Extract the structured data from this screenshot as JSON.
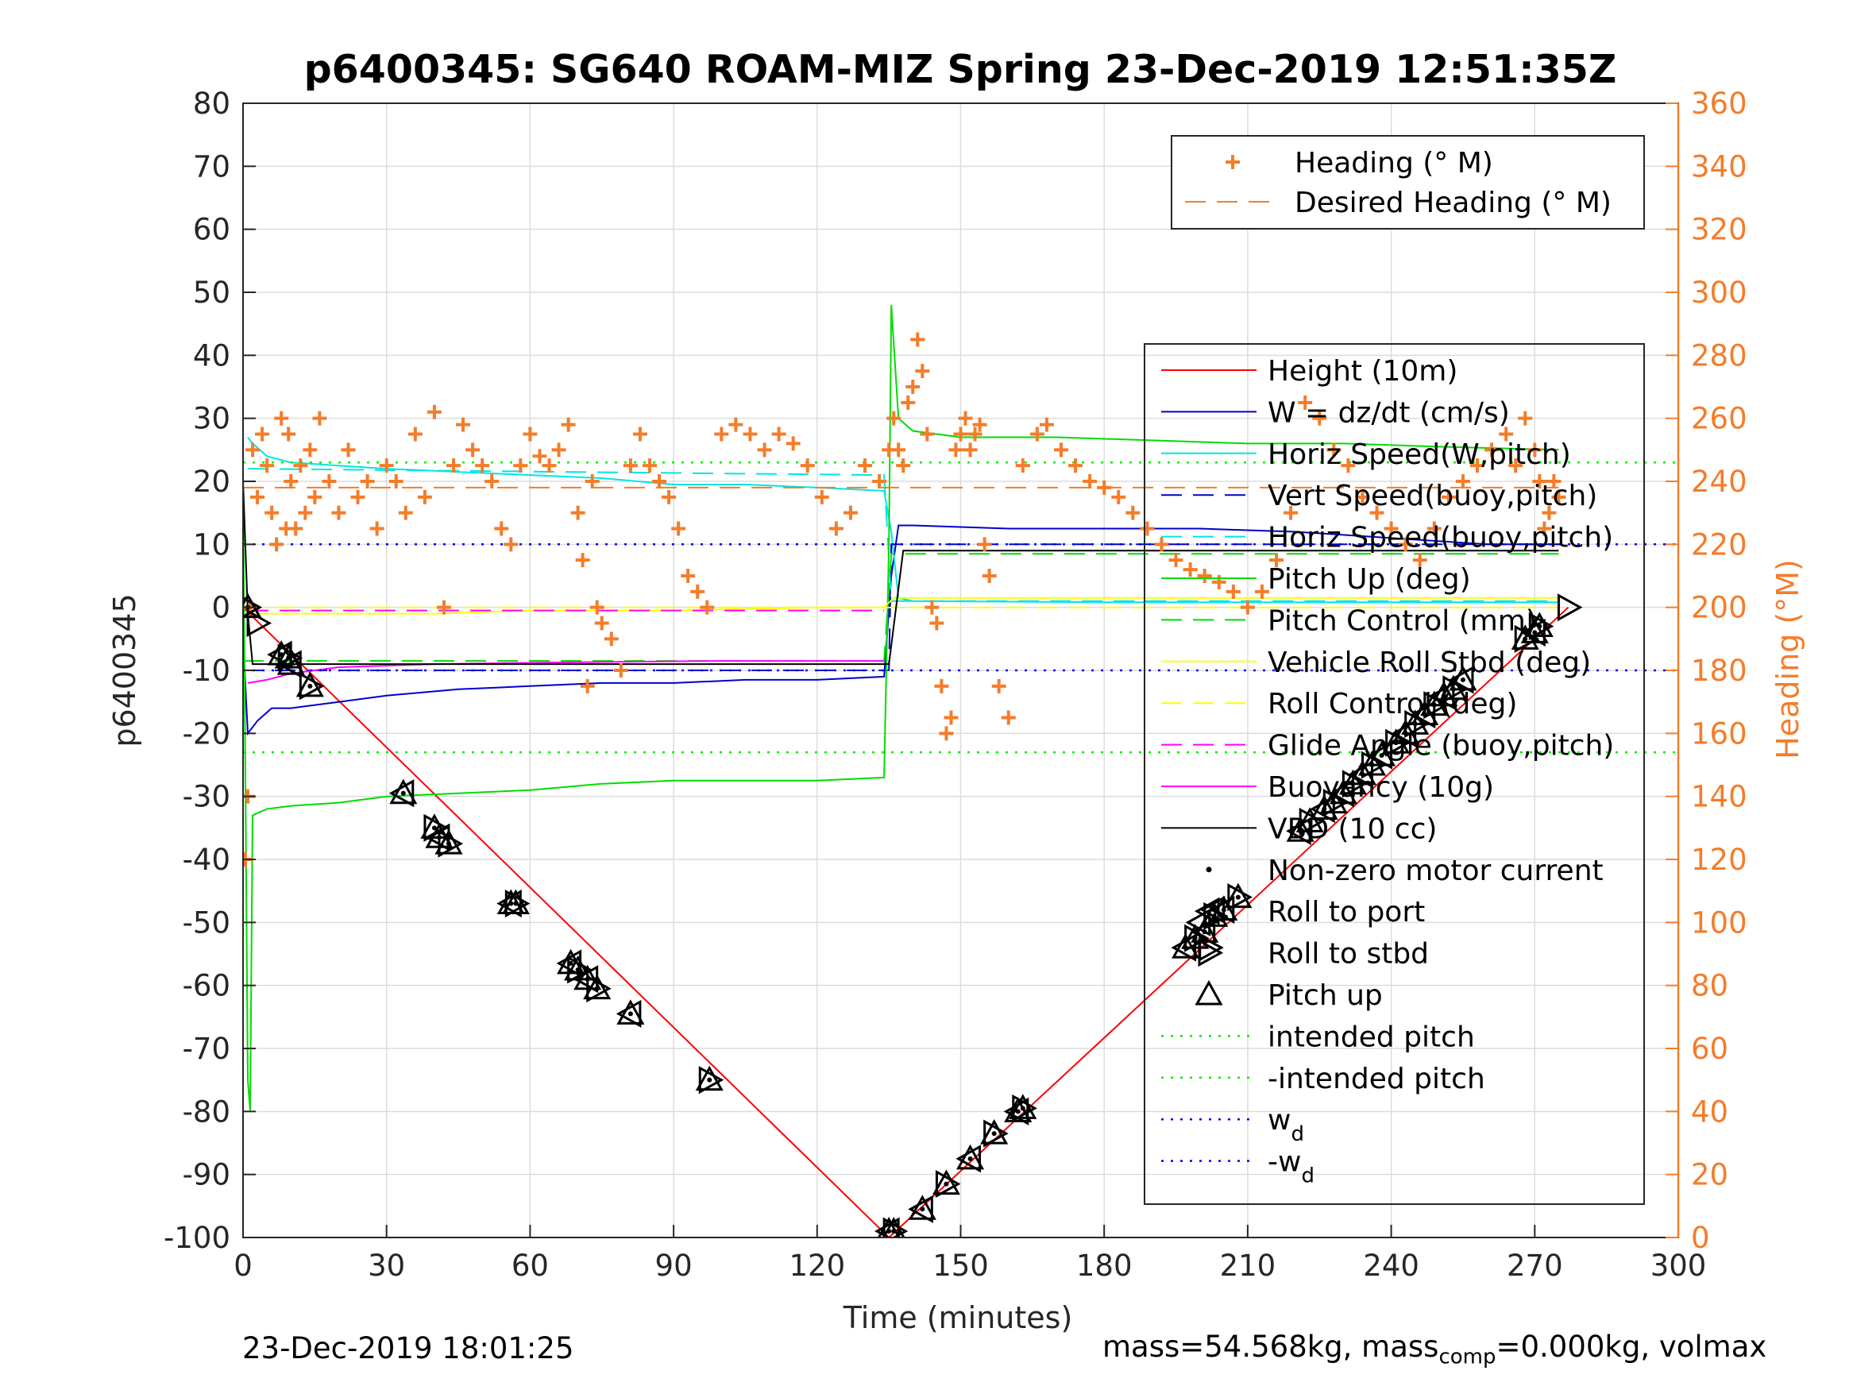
{
  "chart_data": {
    "type": "line",
    "title": "p6400345: SG640 ROAM-MIZ Spring 23-Dec-2019 12:51:35Z",
    "xlabel": "Time (minutes)",
    "ylabel_left": "p6400345",
    "ylabel_right": "Heading (°M)",
    "xlim": [
      0,
      300
    ],
    "ylim_left": [
      -100,
      80
    ],
    "ylim_right": [
      0,
      360
    ],
    "xticks": [
      "0",
      "30",
      "60",
      "90",
      "120",
      "150",
      "180",
      "210",
      "240",
      "270",
      "300"
    ],
    "yticks_left": [
      "80",
      "70",
      "60",
      "50",
      "40",
      "30",
      "20",
      "10",
      "0",
      "-10",
      "-20",
      "-30",
      "-40",
      "-50",
      "-60",
      "-70",
      "-80",
      "-90",
      "-100"
    ],
    "yticks_right": [
      "360",
      "340",
      "320",
      "300",
      "280",
      "260",
      "240",
      "220",
      "200",
      "180",
      "160",
      "140",
      "120",
      "100",
      "80",
      "60",
      "40",
      "20",
      "0"
    ],
    "grid": true,
    "legend_top": {
      "placement": "top-right",
      "entries": [
        {
          "name": "Heading (° M)",
          "color": "#f47c2a",
          "style": "plus"
        },
        {
          "name": "Desired Heading (° M)",
          "color": "#f47c2a",
          "style": "dashed"
        }
      ]
    },
    "legend_main": {
      "placement": "right",
      "entries": [
        {
          "name": "Height (10m)",
          "color": "#ff0000",
          "style": "solid"
        },
        {
          "name": "W = dz/dt (cm/s)",
          "color": "#0000cc",
          "style": "solid"
        },
        {
          "name": "Horiz Speed(W,pitch)",
          "color": "#00e5e5",
          "style": "solid"
        },
        {
          "name": "Vert Speed(buoy,pitch)",
          "color": "#0000cc",
          "style": "dashed"
        },
        {
          "name": "Horiz Speed(buoy,pitch)",
          "color": "#00e5e5",
          "style": "dashed"
        },
        {
          "name": "Pitch Up (deg)",
          "color": "#00dd00",
          "style": "solid"
        },
        {
          "name": "Pitch Control (mm)",
          "color": "#00dd00",
          "style": "dashed"
        },
        {
          "name": "Vehicle Roll Stbd (deg)",
          "color": "#ffff00",
          "style": "solid"
        },
        {
          "name": "Roll Control (deg)",
          "color": "#ffff00",
          "style": "dashed"
        },
        {
          "name": "Glide Angle (buoy,pitch)",
          "color": "#ff00ff",
          "style": "dashed"
        },
        {
          "name": "Buoyancy (10g)",
          "color": "#ff00ff",
          "style": "solid"
        },
        {
          "name": "VBD (10 cc)",
          "color": "#000000",
          "style": "solid"
        },
        {
          "name": "Non-zero motor current",
          "color": "#000000",
          "style": "dot"
        },
        {
          "name": "Roll to port",
          "color": "#000000",
          "style": "tri-left"
        },
        {
          "name": "Roll to stbd",
          "color": "#000000",
          "style": "tri-right"
        },
        {
          "name": "Pitch up",
          "color": "#000000",
          "style": "tri-up"
        },
        {
          "name": "intended pitch",
          "color": "#00ee00",
          "style": "dotted"
        },
        {
          "name": "-intended pitch",
          "color": "#00ee00",
          "style": "dotted"
        },
        {
          "name": "w",
          "sub": "d",
          "color": "#0000ff",
          "style": "dotted"
        },
        {
          "name": "-w",
          "sub": "d",
          "color": "#0000ff",
          "style": "dotted"
        }
      ]
    },
    "series": [
      {
        "name": "Height (10m)",
        "axis": "left",
        "color": "#ff0000",
        "x": [
          0,
          135,
          277
        ],
        "y": [
          0,
          -100,
          0
        ]
      },
      {
        "name": "W = dz/dt (cm/s)",
        "axis": "left",
        "color": "#0000cc",
        "x": [
          0,
          1,
          3,
          6,
          10,
          20,
          30,
          45,
          60,
          75,
          90,
          105,
          120,
          134,
          135.5,
          137,
          140,
          160,
          180,
          200,
          220,
          240,
          260,
          275
        ],
        "y": [
          -5,
          -20,
          -18,
          -16,
          -16,
          -15,
          -14,
          -13,
          -12.5,
          -12,
          -12,
          -11.5,
          -11.5,
          -11,
          5,
          13,
          13,
          12.5,
          12.5,
          12.5,
          12,
          11,
          10,
          10
        ]
      },
      {
        "name": "Horiz Speed(W,pitch)",
        "axis": "left",
        "color": "#00e5e5",
        "x": [
          1,
          2,
          5,
          10,
          20,
          30,
          45,
          60,
          75,
          90,
          105,
          120,
          134,
          135.5,
          137,
          140,
          180,
          220,
          275
        ],
        "y": [
          27,
          26,
          24,
          23,
          22.5,
          22,
          21.5,
          21,
          20.5,
          19.5,
          19.5,
          19,
          18.5,
          12,
          1.5,
          1,
          0.8,
          0.8,
          0.8
        ]
      },
      {
        "name": "Vert Speed(buoy,pitch)",
        "axis": "left",
        "color": "#0000cc",
        "x": [
          0,
          135,
          135.5,
          275
        ],
        "y": [
          -10,
          -10,
          10,
          10
        ]
      },
      {
        "name": "Horiz Speed(buoy,pitch)",
        "axis": "left",
        "color": "#00e5e5",
        "x": [
          1,
          134,
          135.5,
          275
        ],
        "y": [
          22,
          21,
          1,
          1
        ]
      },
      {
        "name": "Pitch Up (deg)",
        "axis": "left",
        "color": "#00dd00",
        "x": [
          0,
          1,
          1.5,
          2,
          5,
          10,
          20,
          30,
          45,
          60,
          75,
          90,
          105,
          120,
          134,
          135,
          135.5,
          137,
          140,
          150,
          170,
          190,
          210,
          230,
          250,
          275
        ],
        "y": [
          20,
          -75,
          -80,
          -33,
          -32,
          -31.5,
          -31,
          -30,
          -29.5,
          -29,
          -28,
          -27.5,
          -27.5,
          -27.5,
          -27,
          10,
          48,
          30,
          28,
          27,
          27,
          26.5,
          26,
          26,
          25.5,
          25
        ]
      },
      {
        "name": "Pitch Control (mm)",
        "axis": "left",
        "color": "#00dd00",
        "x": [
          0,
          134,
          135.5,
          275
        ],
        "y": [
          -8.5,
          -8.5,
          8.5,
          8.5
        ]
      },
      {
        "name": "Vehicle Roll Stbd (deg)",
        "axis": "left",
        "color": "#ffff00",
        "x": [
          1,
          20,
          40,
          60,
          90,
          120,
          134,
          136,
          160,
          200,
          240,
          275
        ],
        "y": [
          -1,
          -1,
          -1,
          -0.5,
          -0.5,
          0,
          0,
          1.5,
          1.5,
          1.5,
          1.5,
          1.5
        ]
      },
      {
        "name": "Roll Control (deg)",
        "axis": "left",
        "color": "#ffff00",
        "x": [
          0,
          275
        ],
        "y": [
          0,
          0
        ]
      },
      {
        "name": "Glide Angle (buoy,pitch)",
        "axis": "left",
        "color": "#ff00ff",
        "x": [
          1,
          134
        ],
        "y": [
          -0.5,
          -0.5
        ]
      },
      {
        "name": "Buoyancy (10g)",
        "axis": "left",
        "color": "#ff00ff",
        "x": [
          1,
          5,
          10,
          20,
          40,
          70,
          100,
          134
        ],
        "y": [
          -12,
          -11.5,
          -10.5,
          -9.5,
          -9,
          -8.7,
          -8.5,
          -8.5
        ]
      },
      {
        "name": "VBD (10 cc)",
        "axis": "left",
        "color": "#000000",
        "x": [
          0,
          1,
          2,
          134,
          135,
          138,
          275
        ],
        "y": [
          20,
          -1,
          -9,
          -9,
          -9,
          9,
          9
        ]
      },
      {
        "name": "intended pitch",
        "axis": "left",
        "color": "#00ee00",
        "x": [
          0,
          300
        ],
        "y": [
          23,
          23
        ]
      },
      {
        "name": "-intended pitch",
        "axis": "left",
        "color": "#00ee00",
        "x": [
          0,
          300
        ],
        "y": [
          -23,
          -23
        ]
      },
      {
        "name": "w_d",
        "axis": "left",
        "color": "#0000ff",
        "x": [
          0,
          300
        ],
        "y": [
          10,
          10
        ]
      },
      {
        "name": "-w_d",
        "axis": "left",
        "color": "#0000ff",
        "x": [
          0,
          300
        ],
        "y": [
          -10,
          -10
        ]
      },
      {
        "name": "Desired Heading (° M)",
        "axis": "right",
        "color": "#f47c2a",
        "x": [
          0,
          275
        ],
        "y": [
          238,
          238
        ]
      }
    ],
    "heading_points": {
      "name": "Heading (° M)",
      "axis": "right",
      "color": "#f47c2a",
      "x": [
        0.5,
        1,
        1.5,
        2,
        3,
        4,
        5,
        6,
        7,
        8,
        9,
        9.5,
        10,
        11,
        12,
        13,
        14,
        15,
        16,
        18,
        20,
        22,
        24,
        26,
        28,
        30,
        32,
        34,
        36,
        38,
        40,
        42,
        44,
        46,
        48,
        50,
        52,
        54,
        56,
        58,
        60,
        62,
        64,
        66,
        68,
        70,
        71,
        72,
        73,
        74,
        75,
        77,
        79,
        81,
        83,
        85,
        87,
        89,
        91,
        93,
        95,
        97,
        100,
        103,
        106,
        109,
        112,
        115,
        118,
        121,
        124,
        127,
        130,
        133,
        135,
        136,
        137,
        138,
        139,
        140,
        141,
        142,
        143,
        144,
        145,
        146,
        147,
        148,
        149,
        150,
        151,
        152,
        153,
        154,
        155,
        156,
        158,
        160,
        163,
        166,
        168,
        171,
        174,
        177,
        180,
        183,
        186,
        189,
        192,
        195,
        198,
        201,
        204,
        207,
        210,
        213,
        216,
        219,
        222,
        225,
        228,
        231,
        234,
        237,
        240,
        243,
        246,
        249,
        252,
        255,
        258,
        261,
        264,
        266,
        268,
        270,
        271,
        272,
        273,
        274,
        275
      ],
      "y": [
        120,
        140,
        200,
        250,
        235,
        255,
        245,
        230,
        220,
        260,
        225,
        255,
        240,
        225,
        245,
        230,
        250,
        235,
        260,
        240,
        230,
        250,
        235,
        240,
        225,
        245,
        240,
        230,
        255,
        235,
        262,
        200,
        245,
        258,
        250,
        245,
        240,
        225,
        220,
        245,
        255,
        248,
        245,
        250,
        258,
        230,
        215,
        175,
        240,
        200,
        195,
        190,
        180,
        245,
        255,
        245,
        240,
        235,
        225,
        210,
        205,
        200,
        255,
        258,
        255,
        250,
        255,
        252,
        245,
        235,
        225,
        230,
        245,
        240,
        250,
        260,
        250,
        245,
        265,
        270,
        285,
        275,
        255,
        200,
        195,
        175,
        160,
        165,
        250,
        255,
        260,
        250,
        255,
        258,
        220,
        210,
        175,
        165,
        245,
        255,
        258,
        250,
        245,
        240,
        238,
        235,
        230,
        225,
        220,
        215,
        212,
        210,
        208,
        205,
        200,
        205,
        215,
        230,
        265,
        260,
        250,
        245,
        235,
        230,
        225,
        220,
        215,
        225,
        235,
        240,
        245,
        250,
        255,
        245,
        260,
        250,
        240,
        225,
        230,
        240,
        235
      ]
    },
    "motor_markers": {
      "pitch_up": {
        "x": [
          1,
          8,
          9.5,
          10,
          14,
          33.5,
          40,
          41,
          43,
          56,
          57,
          68.5,
          70,
          72,
          74,
          81,
          97.5,
          135,
          136,
          142,
          147,
          152,
          157,
          162,
          163,
          197,
          199,
          201,
          203,
          205,
          208,
          221,
          223,
          226,
          228,
          230,
          232,
          234,
          236,
          238,
          241,
          243,
          245,
          247,
          249,
          251,
          253,
          255,
          268,
          270,
          271
        ],
        "y": [
          0,
          -7.5,
          -8,
          -9,
          -12.5,
          -29.5,
          -35,
          -36.5,
          -37.5,
          -47,
          -47,
          -56.5,
          -57.5,
          -59,
          -60.5,
          -64.5,
          -75,
          -99,
          -99,
          -95.5,
          -91.5,
          -87.5,
          -83.5,
          -80,
          -79.5,
          -54,
          -52.5,
          -51.5,
          -49,
          -48,
          -46,
          -35.5,
          -34,
          -32,
          -31,
          -29.5,
          -28,
          -26.5,
          -25,
          -23.5,
          -21.5,
          -20,
          -18.5,
          -17,
          -15.5,
          -14,
          -13,
          -11.5,
          -5,
          -4,
          -3
        ]
      },
      "roll_to_port": {
        "x": [
          200,
          203
        ],
        "y": [
          -50,
          -48
        ]
      },
      "roll_to_stbd": {
        "x": [
          3,
          202,
          277
        ],
        "y": [
          -2.5,
          -54,
          0
        ]
      }
    }
  }
}
